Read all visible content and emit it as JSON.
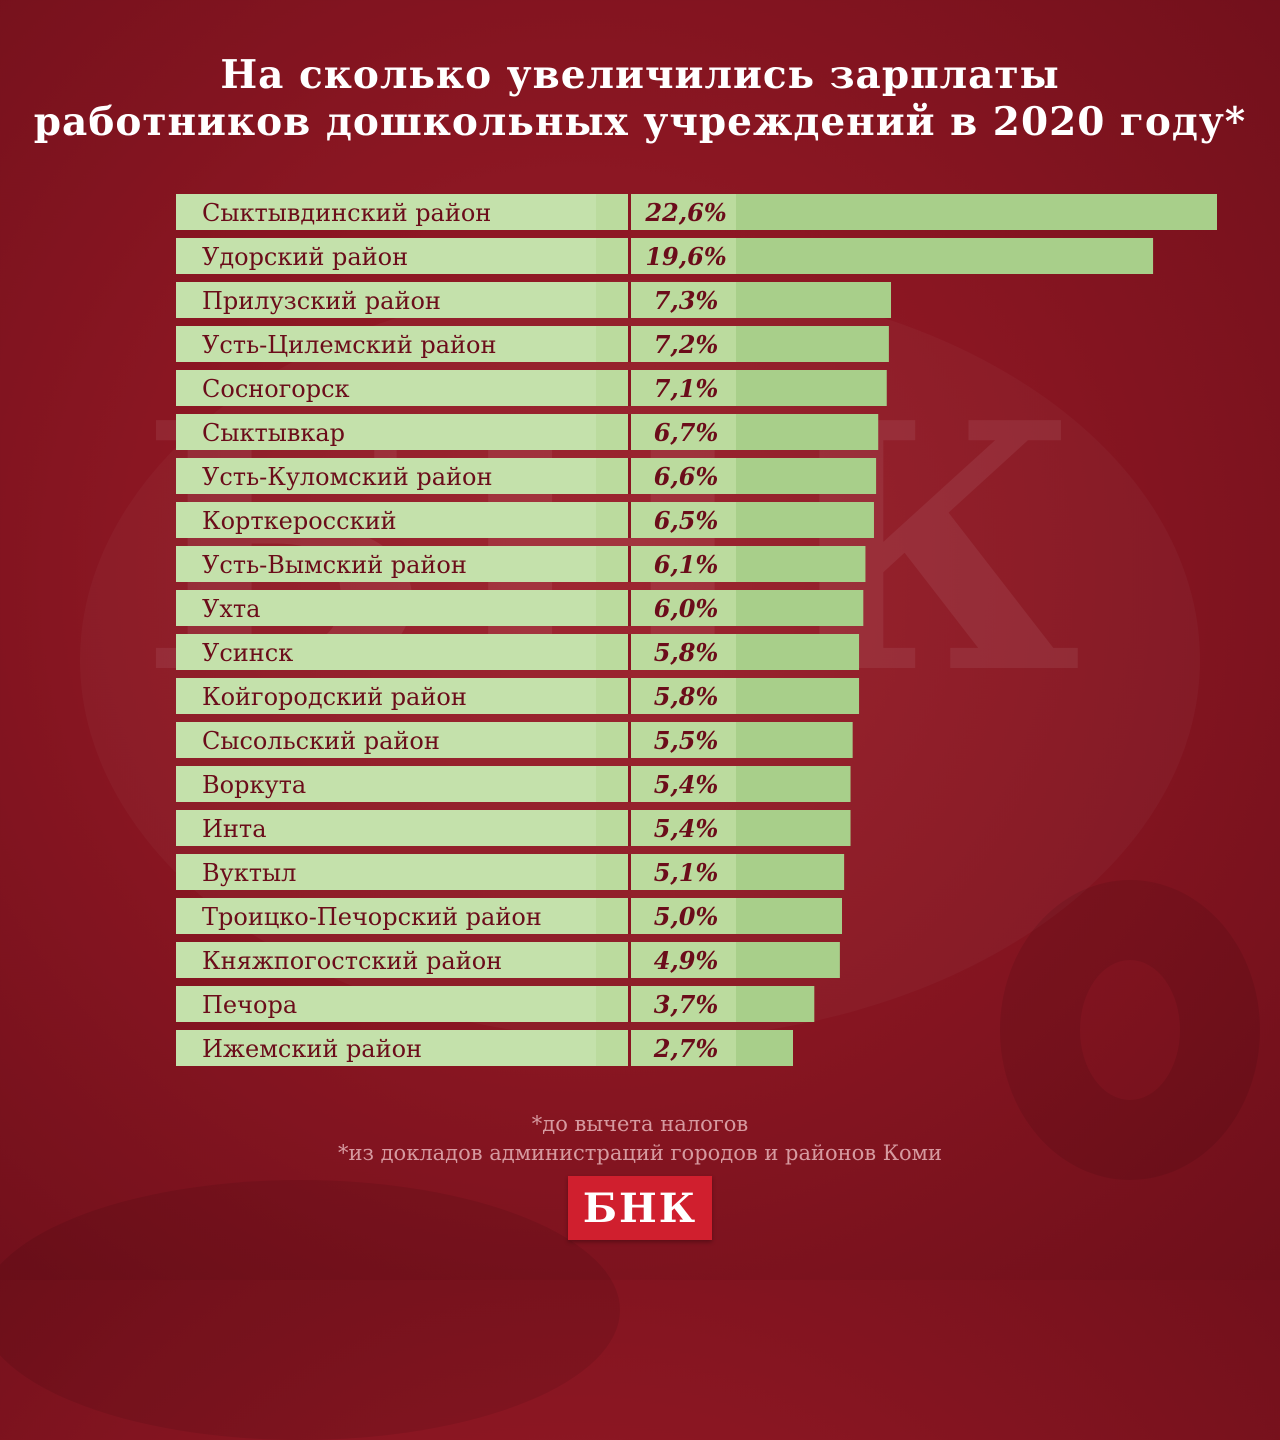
{
  "title_lines": [
    "На сколько увеличились зарплаты",
    "работников дошкольных учреждений в 2020 году*"
  ],
  "chart_data": {
    "type": "bar",
    "orientation": "horizontal",
    "title": "На сколько увеличились зарплаты работников дошкольных учреждений в 2020 году*",
    "xlabel": "",
    "ylabel": "",
    "unit": "%",
    "categories": [
      "Сыктывдинский район",
      "Удорский район",
      "Прилузский район",
      "Усть-Цилемский район",
      "Сосногорск",
      "Сыктывкар",
      "Усть-Куломский район",
      "Корткеросский",
      "Усть-Вымский район",
      "Ухта",
      "Усинск",
      "Койгородский район",
      "Сысольский район",
      "Воркута",
      "Инта",
      "Вуктыл",
      "Троицко-Печорский район",
      "Княжпогостский район",
      "Печора",
      "Ижемский район"
    ],
    "values": [
      22.6,
      19.6,
      7.3,
      7.2,
      7.1,
      6.7,
      6.6,
      6.5,
      6.1,
      6.0,
      5.8,
      5.8,
      5.5,
      5.4,
      5.4,
      5.1,
      5.0,
      4.9,
      3.7,
      2.7
    ],
    "value_labels": [
      "22,6%",
      "19,6%",
      "7,3%",
      "7,2%",
      "7,1%",
      "6,7%",
      "6,6%",
      "6,5%",
      "6,1%",
      "6,0%",
      "5,8%",
      "5,8%",
      "5,5%",
      "5,4%",
      "5,4%",
      "5,1%",
      "5,0%",
      "4,9%",
      "3,7%",
      "2,7%"
    ],
    "colors": {
      "bar": "#a8cf8a",
      "label_panel": "#c6e2ae",
      "value_panel": "#bcdba0",
      "text": "#6b0d1a"
    }
  },
  "footnotes": [
    "*до вычета налогов",
    "*из докладов администраций городов и районов Коми"
  ],
  "watermark_text": "БНК",
  "logo_text": "БНК"
}
